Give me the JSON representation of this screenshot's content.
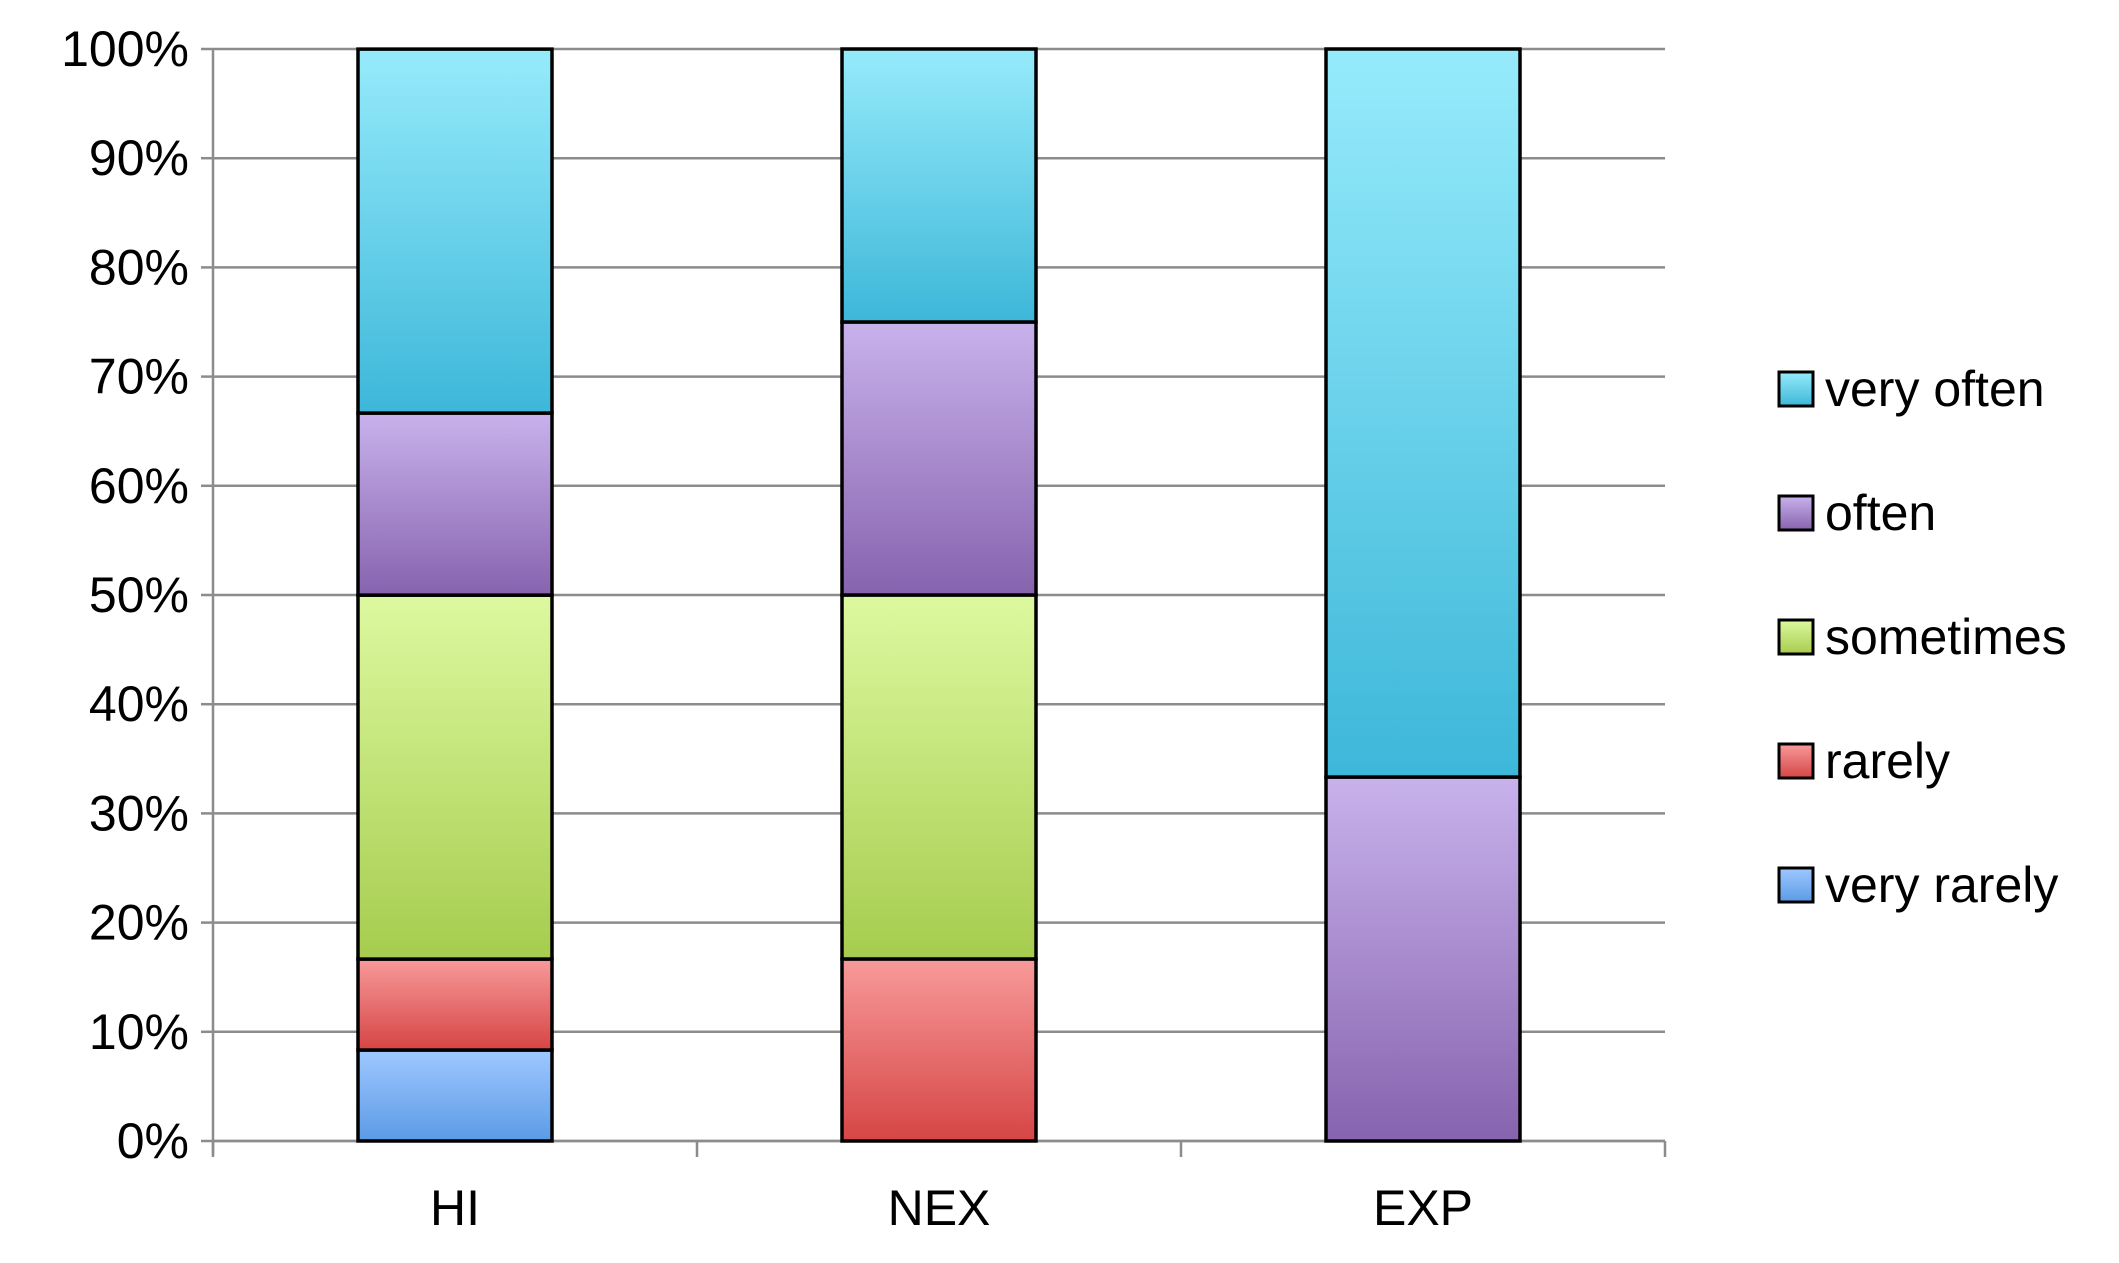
{
  "chart_data": {
    "type": "bar",
    "stacked": true,
    "percent_stacked": true,
    "categories": [
      "HI",
      "NEX",
      "EXP"
    ],
    "series": [
      {
        "name": "very rarely",
        "values": [
          8.33,
          0,
          0
        ],
        "color": "#5b9be6",
        "color_light": "#9fc8ff"
      },
      {
        "name": "rarely",
        "values": [
          8.33,
          16.67,
          0
        ],
        "color": "#d64545",
        "color_light": "#f89a9a"
      },
      {
        "name": "sometimes",
        "values": [
          33.33,
          33.33,
          0
        ],
        "color": "#a6cc4e",
        "color_light": "#ddf9a0"
      },
      {
        "name": "often",
        "values": [
          16.67,
          25,
          33.33
        ],
        "color": "#8763ae",
        "color_light": "#c8b2ec"
      },
      {
        "name": "very often",
        "values": [
          33.33,
          25,
          66.67
        ],
        "color": "#3db7d9",
        "color_light": "#96ebfb"
      }
    ],
    "ylim": [
      0,
      100
    ],
    "yticks": [
      "0%",
      "10%",
      "20%",
      "30%",
      "40%",
      "50%",
      "60%",
      "70%",
      "80%",
      "90%",
      "100%"
    ],
    "grid": true,
    "legend_position": "right",
    "legend_order": [
      "very often",
      "often",
      "sometimes",
      "rarely",
      "very rarely"
    ],
    "title": "",
    "xlabel": "",
    "ylabel": ""
  }
}
